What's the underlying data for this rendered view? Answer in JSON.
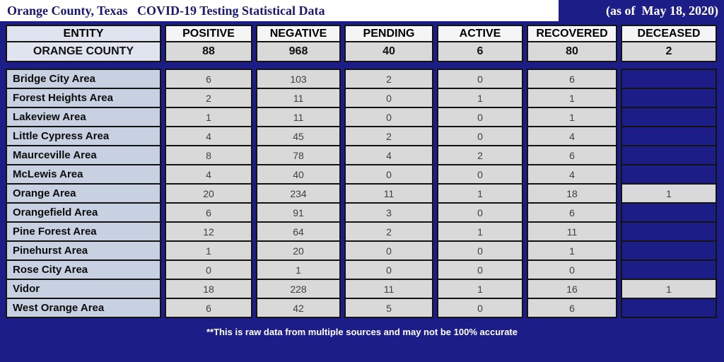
{
  "title_bar": {
    "title": "Orange County, Texas   COVID-19 Testing Statistical Data",
    "date_note": "(as of  May 18, 2020)"
  },
  "table": {
    "headers": [
      "ENTITY",
      "POSITIVE",
      "NEGATIVE",
      "PENDING",
      "ACTIVE",
      "RECOVERED",
      "DECEASED"
    ],
    "county_row": {
      "entity": "ORANGE COUNTY",
      "values": [
        "88",
        "968",
        "40",
        "6",
        "80",
        "2"
      ]
    },
    "rows": [
      {
        "entity": "Bridge City Area",
        "values": [
          "6",
          "103",
          "2",
          "0",
          "6",
          ""
        ]
      },
      {
        "entity": "Forest Heights Area",
        "values": [
          "2",
          "11",
          "0",
          "1",
          "1",
          ""
        ]
      },
      {
        "entity": "Lakeview Area",
        "values": [
          "1",
          "11",
          "0",
          "0",
          "1",
          ""
        ]
      },
      {
        "entity": "Little Cypress Area",
        "values": [
          "4",
          "45",
          "2",
          "0",
          "4",
          ""
        ]
      },
      {
        "entity": "Maurceville Area",
        "values": [
          "8",
          "78",
          "4",
          "2",
          "6",
          ""
        ]
      },
      {
        "entity": "McLewis Area",
        "values": [
          "4",
          "40",
          "0",
          "0",
          "4",
          ""
        ]
      },
      {
        "entity": "Orange Area",
        "values": [
          "20",
          "234",
          "11",
          "1",
          "18",
          "1"
        ]
      },
      {
        "entity": "Orangefield Area",
        "values": [
          "6",
          "91",
          "3",
          "0",
          "6",
          ""
        ]
      },
      {
        "entity": "Pine Forest Area",
        "values": [
          "12",
          "64",
          "2",
          "1",
          "11",
          ""
        ]
      },
      {
        "entity": "Pinehurst Area",
        "values": [
          "1",
          "20",
          "0",
          "0",
          "1",
          ""
        ]
      },
      {
        "entity": "Rose City Area",
        "values": [
          "0",
          "1",
          "0",
          "0",
          "0",
          ""
        ]
      },
      {
        "entity": "Vidor",
        "values": [
          "18",
          "228",
          "11",
          "1",
          "16",
          "1"
        ]
      },
      {
        "entity": "West Orange Area",
        "values": [
          "6",
          "42",
          "5",
          "0",
          "6",
          ""
        ]
      }
    ]
  },
  "footer": {
    "disclaimer": "**This is raw data from multiple sources and may not be 100% accurate"
  },
  "colors": {
    "background": "#1d1d87",
    "entity_cell": "#c8d1e1",
    "data_cell": "#d9d9d9",
    "header_cell": "#f5f5f5",
    "title_text": "#191970",
    "footer_text": "#ffffff"
  },
  "chart_data": {
    "type": "table",
    "title": "Orange County, Texas COVID-19 Testing Statistical Data (as of May 18, 2020)",
    "columns": [
      "ENTITY",
      "POSITIVE",
      "NEGATIVE",
      "PENDING",
      "ACTIVE",
      "RECOVERED",
      "DECEASED"
    ],
    "rows": [
      [
        "ORANGE COUNTY",
        88,
        968,
        40,
        6,
        80,
        2
      ],
      [
        "Bridge City Area",
        6,
        103,
        2,
        0,
        6,
        null
      ],
      [
        "Forest Heights Area",
        2,
        11,
        0,
        1,
        1,
        null
      ],
      [
        "Lakeview Area",
        1,
        11,
        0,
        0,
        1,
        null
      ],
      [
        "Little Cypress Area",
        4,
        45,
        2,
        0,
        4,
        null
      ],
      [
        "Maurceville Area",
        8,
        78,
        4,
        2,
        6,
        null
      ],
      [
        "McLewis Area",
        4,
        40,
        0,
        0,
        4,
        null
      ],
      [
        "Orange Area",
        20,
        234,
        11,
        1,
        18,
        1
      ],
      [
        "Orangefield Area",
        6,
        91,
        3,
        0,
        6,
        null
      ],
      [
        "Pine Forest Area",
        12,
        64,
        2,
        1,
        11,
        null
      ],
      [
        "Pinehurst Area",
        1,
        20,
        0,
        0,
        1,
        null
      ],
      [
        "Rose City Area",
        0,
        1,
        0,
        0,
        0,
        null
      ],
      [
        "Vidor",
        18,
        228,
        11,
        1,
        16,
        1
      ],
      [
        "West Orange Area",
        6,
        42,
        5,
        0,
        6,
        null
      ]
    ]
  }
}
